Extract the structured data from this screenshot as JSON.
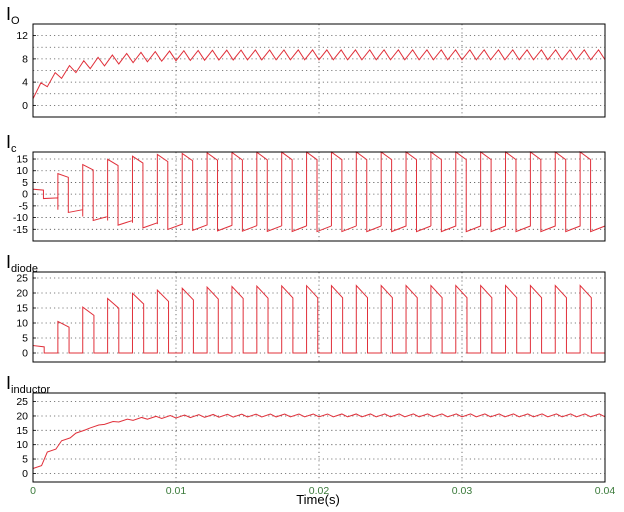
{
  "figure": {
    "xlabel": "Time(s)",
    "x_ticks": [
      "0",
      "0.01",
      "0.02",
      "0.03",
      "0.04"
    ],
    "line_color": "#e0303a",
    "grid_color": "#555555"
  },
  "chart_data": [
    {
      "type": "line",
      "title_main": "I",
      "title_sub": "O",
      "xlim": [
        0,
        0.04
      ],
      "ylim": [
        -2,
        14
      ],
      "y_ticks": [
        0,
        4,
        8,
        12
      ],
      "y_tick_labels": [
        "0",
        "4",
        "8",
        "12"
      ],
      "x_grid": [
        0.01,
        0.02,
        0.03
      ],
      "y_grid": [
        0,
        2,
        4,
        6,
        8,
        10,
        12
      ],
      "model": {
        "kind": "output",
        "steady": 8.7,
        "ripple": 1.7,
        "cycles": 40
      }
    },
    {
      "type": "line",
      "title_main": "I",
      "title_sub": "c",
      "xlim": [
        0,
        0.04
      ],
      "ylim": [
        -20,
        18
      ],
      "y_ticks": [
        15,
        10,
        5,
        0,
        -5,
        -10,
        -15
      ],
      "y_tick_labels": [
        "15",
        "10",
        "5",
        "0",
        "-5",
        "-10",
        "-15"
      ],
      "x_grid": [
        0.01,
        0.02,
        0.03
      ],
      "y_grid": [
        15,
        10,
        5,
        0,
        -5,
        -10,
        -15
      ],
      "model": {
        "kind": "capacitor",
        "pos_peak": 18,
        "neg_peak": -16,
        "cycles": 23
      }
    },
    {
      "type": "line",
      "title_main": "I",
      "title_sub": "diode",
      "xlim": [
        0,
        0.04
      ],
      "ylim": [
        -3,
        27
      ],
      "y_ticks": [
        25,
        20,
        15,
        10,
        5,
        0
      ],
      "y_tick_labels": [
        "25",
        "20",
        "15",
        "10",
        "5",
        "0"
      ],
      "x_grid": [
        0.01,
        0.02,
        0.03
      ],
      "y_grid": [
        25,
        20,
        15,
        10,
        5,
        0
      ],
      "model": {
        "kind": "diode",
        "peak": 22.5,
        "cycles": 23
      }
    },
    {
      "type": "line",
      "title_main": "I",
      "title_sub": "inductor",
      "xlim": [
        0,
        0.04
      ],
      "ylim": [
        -3,
        28
      ],
      "y_ticks": [
        25,
        20,
        15,
        10,
        5,
        0
      ],
      "y_tick_labels": [
        "25",
        "20",
        "15",
        "10",
        "5",
        "0"
      ],
      "x_grid": [
        0.01,
        0.02,
        0.03
      ],
      "y_grid": [
        25,
        20,
        15,
        10,
        5,
        0
      ],
      "model": {
        "kind": "inductor",
        "steady": 20.2,
        "ripple": 1.0,
        "cycles": 40
      }
    }
  ]
}
